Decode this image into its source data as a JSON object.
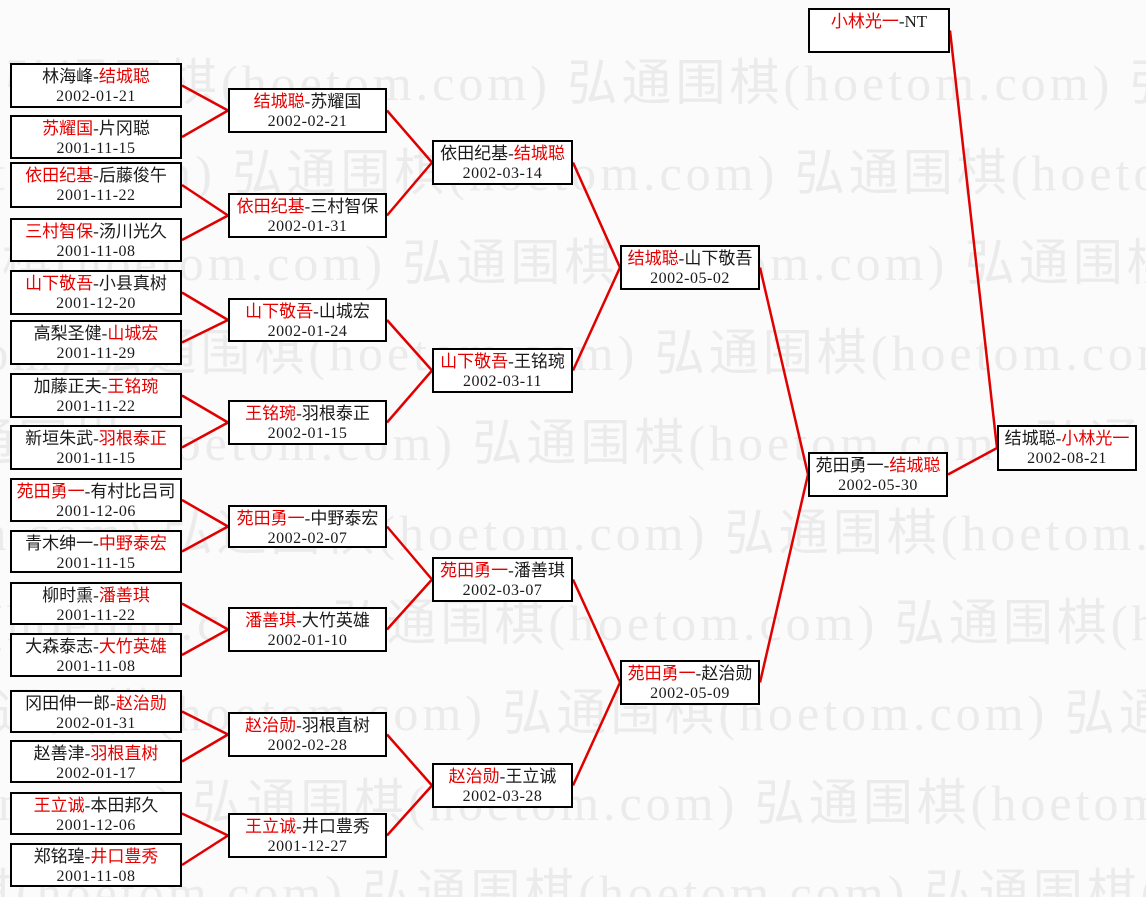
{
  "watermark": {
    "text": "弘通围棋(hoetom.com)"
  },
  "bracket": {
    "colors": {
      "winner_text": "#e60000",
      "line": "#e00000",
      "border": "#000000",
      "loser_text": "#1a1a1a",
      "watermark": "#ebebeb"
    },
    "rounds": [
      {
        "name": "round-1",
        "matches": [
          {
            "p1": "林海峰",
            "p2": "结城聪",
            "winner": "p2",
            "date": "2002-01-21"
          },
          {
            "p1": "苏耀国",
            "p2": "片冈聪",
            "winner": "p1",
            "date": "2001-11-15"
          },
          {
            "p1": "依田纪基",
            "p2": "后藤俊午",
            "winner": "p1",
            "date": "2001-11-22"
          },
          {
            "p1": "三村智保",
            "p2": "汤川光久",
            "winner": "p1",
            "date": "2001-11-08"
          },
          {
            "p1": "山下敬吾",
            "p2": "小县真树",
            "winner": "p1",
            "date": "2001-12-20"
          },
          {
            "p1": "高梨圣健",
            "p2": "山城宏",
            "winner": "p2",
            "date": "2001-11-29"
          },
          {
            "p1": "加藤正夫",
            "p2": "王铭琬",
            "winner": "p2",
            "date": "2001-11-22"
          },
          {
            "p1": "新垣朱武",
            "p2": "羽根泰正",
            "winner": "p2",
            "date": "2001-11-15"
          },
          {
            "p1": "苑田勇一",
            "p2": "有村比吕司",
            "winner": "p1",
            "date": "2001-12-06"
          },
          {
            "p1": "青木绅一",
            "p2": "中野泰宏",
            "winner": "p2",
            "date": "2001-11-15"
          },
          {
            "p1": "柳时熏",
            "p2": "潘善琪",
            "winner": "p2",
            "date": "2001-11-22"
          },
          {
            "p1": "大森泰志",
            "p2": "大竹英雄",
            "winner": "p2",
            "date": "2001-11-08"
          },
          {
            "p1": "冈田伸一郎",
            "p2": "赵治勋",
            "winner": "p2",
            "date": "2002-01-31"
          },
          {
            "p1": "赵善津",
            "p2": "羽根直树",
            "winner": "p2",
            "date": "2002-01-17"
          },
          {
            "p1": "王立诚",
            "p2": "本田邦久",
            "winner": "p1",
            "date": "2001-12-06"
          },
          {
            "p1": "郑铭瑝",
            "p2": "井口豊秀",
            "winner": "p2",
            "date": "2001-11-08"
          }
        ]
      },
      {
        "name": "round-2",
        "matches": [
          {
            "p1": "结城聪",
            "p2": "苏耀国",
            "winner": "p1",
            "date": "2002-02-21"
          },
          {
            "p1": "依田纪基",
            "p2": "三村智保",
            "winner": "p1",
            "date": "2002-01-31"
          },
          {
            "p1": "山下敬吾",
            "p2": "山城宏",
            "winner": "p1",
            "date": "2002-01-24"
          },
          {
            "p1": "王铭琬",
            "p2": "羽根泰正",
            "winner": "p1",
            "date": "2002-01-15"
          },
          {
            "p1": "苑田勇一",
            "p2": "中野泰宏",
            "winner": "p1",
            "date": "2002-02-07"
          },
          {
            "p1": "潘善琪",
            "p2": "大竹英雄",
            "winner": "p1",
            "date": "2002-01-10"
          },
          {
            "p1": "赵治勋",
            "p2": "羽根直树",
            "winner": "p1",
            "date": "2002-02-28"
          },
          {
            "p1": "王立诚",
            "p2": "井口豊秀",
            "winner": "p1",
            "date": "2001-12-27"
          }
        ]
      },
      {
        "name": "quarterfinals",
        "matches": [
          {
            "p1": "依田纪基",
            "p2": "结城聪",
            "winner": "p2",
            "date": "2002-03-14"
          },
          {
            "p1": "山下敬吾",
            "p2": "王铭琬",
            "winner": "p1",
            "date": "2002-03-11"
          },
          {
            "p1": "苑田勇一",
            "p2": "潘善琪",
            "winner": "p1",
            "date": "2002-03-07"
          },
          {
            "p1": "赵治勋",
            "p2": "王立诚",
            "winner": "p1",
            "date": "2002-03-28"
          }
        ]
      },
      {
        "name": "semifinals",
        "matches": [
          {
            "p1": "结城聪",
            "p2": "山下敬吾",
            "winner": "p1",
            "date": "2002-05-02"
          },
          {
            "p1": "苑田勇一",
            "p2": "赵治勋",
            "winner": "p1",
            "date": "2002-05-09"
          }
        ]
      },
      {
        "name": "challenger-final",
        "matches": [
          {
            "p1": "苑田勇一",
            "p2": "结城聪",
            "winner": "p2",
            "date": "2002-05-30"
          }
        ]
      },
      {
        "name": "title-match",
        "matches": [
          {
            "p1": "结城聪",
            "p2": "小林光一",
            "winner": "p2",
            "date": "2002-08-21"
          }
        ]
      },
      {
        "name": "titleholder",
        "matches": [
          {
            "p1": "小林光一",
            "p2": "NT",
            "winner": "p1",
            "date": ""
          }
        ]
      }
    ]
  }
}
